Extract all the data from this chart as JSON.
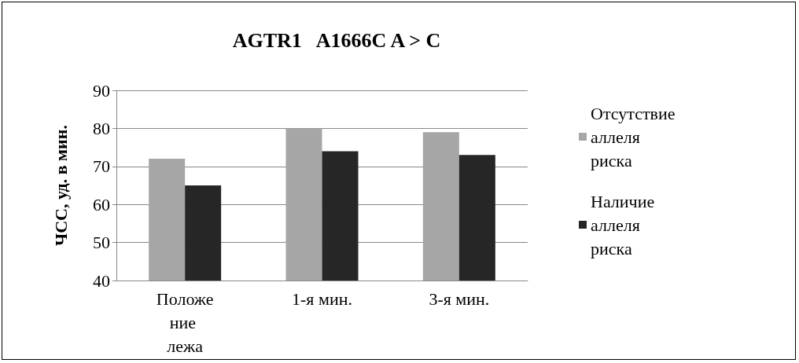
{
  "chart_data": {
    "type": "bar",
    "title": "AGTR1   A1666C A > C",
    "ylabel": "ЧСС, уд. в мин.",
    "categories": [
      "Положение лежа",
      "1-я мин.",
      "3-я мин."
    ],
    "series": [
      {
        "name": "Отсутствие аллеля риска",
        "color": "#a6a6a6",
        "values": [
          72,
          80,
          79
        ]
      },
      {
        "name": "Наличие аллеля риска",
        "color": "#262626",
        "values": [
          65,
          74,
          73
        ]
      }
    ],
    "ylim": [
      40,
      90
    ],
    "yticks": [
      40,
      50,
      60,
      70,
      80,
      90
    ],
    "grid": "y",
    "legend": "right"
  }
}
